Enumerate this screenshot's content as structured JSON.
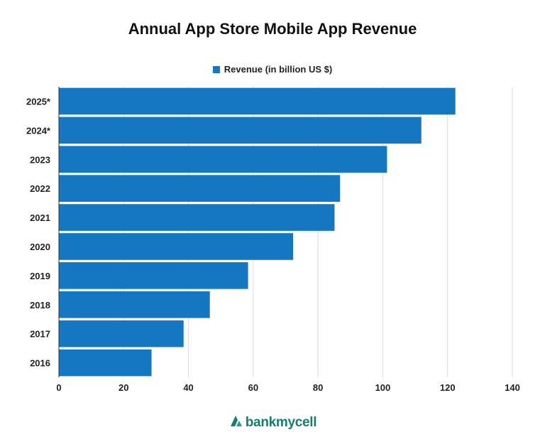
{
  "chart_data": {
    "type": "bar",
    "orientation": "horizontal",
    "title": "Annual App Store Mobile App Revenue",
    "categories": [
      "2025*",
      "2024*",
      "2023",
      "2022",
      "2021",
      "2020",
      "2019",
      "2018",
      "2017",
      "2016"
    ],
    "series": [
      {
        "name": "Revenue (in billion US $)",
        "values": [
          122.4,
          111.9,
          101.3,
          86.8,
          85.1,
          72.3,
          58.4,
          46.6,
          38.5,
          28.6
        ]
      }
    ],
    "xlim": [
      0,
      140
    ],
    "x_ticks": [
      0,
      20,
      40,
      60,
      80,
      100,
      120,
      140
    ],
    "x_tick_labels": [
      "0",
      "20",
      "40",
      "60",
      "80",
      "100",
      "120",
      "140"
    ],
    "xlabel": "",
    "ylabel": "",
    "grid": "vertical",
    "legend_position": "top-center",
    "bar_color": "#1576c2"
  },
  "footer": {
    "brand": "bankmycell",
    "brand_color": "#157e70"
  }
}
